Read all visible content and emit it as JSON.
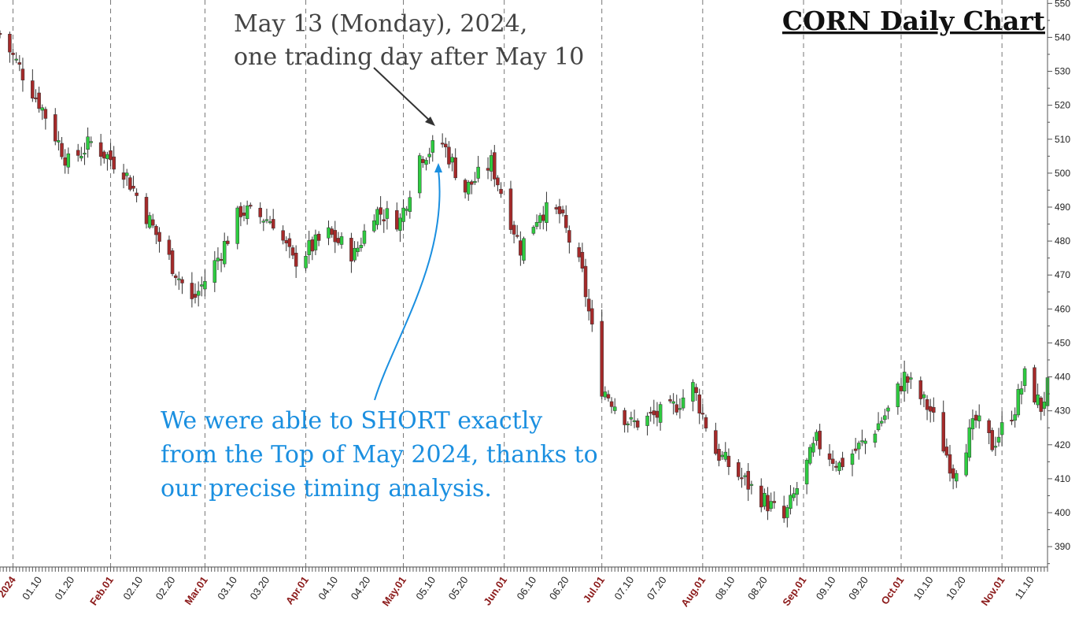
{
  "chart_data": {
    "type": "candlestick",
    "title": "CORN Daily Chart",
    "ylim": [
      384,
      551
    ],
    "yticks": [
      390,
      400,
      410,
      420,
      430,
      440,
      450,
      460,
      470,
      480,
      490,
      500,
      510,
      520,
      530,
      540,
      550
    ],
    "x_start": "2023-12-29",
    "x_end": "2024-11-15",
    "grid": {
      "vertical_dashed_at_month_starts": true,
      "horizontal": false
    },
    "x_tick_labels": [
      {
        "label": "2024",
        "date": "2024-01-02",
        "month_start": true
      },
      {
        "label": "01.10",
        "date": "2024-01-10",
        "month_start": false
      },
      {
        "label": "01.20",
        "date": "2024-01-20",
        "month_start": false
      },
      {
        "label": "Feb.01",
        "date": "2024-02-01",
        "month_start": true
      },
      {
        "label": "02.10",
        "date": "2024-02-10",
        "month_start": false
      },
      {
        "label": "02.20",
        "date": "2024-02-20",
        "month_start": false
      },
      {
        "label": "Mar.01",
        "date": "2024-03-01",
        "month_start": true
      },
      {
        "label": "03.10",
        "date": "2024-03-10",
        "month_start": false
      },
      {
        "label": "03.20",
        "date": "2024-03-20",
        "month_start": false
      },
      {
        "label": "Apr.01",
        "date": "2024-04-01",
        "month_start": true
      },
      {
        "label": "04.10",
        "date": "2024-04-10",
        "month_start": false
      },
      {
        "label": "04.20",
        "date": "2024-04-20",
        "month_start": false
      },
      {
        "label": "May.01",
        "date": "2024-05-01",
        "month_start": true
      },
      {
        "label": "05.10",
        "date": "2024-05-10",
        "month_start": false
      },
      {
        "label": "05.20",
        "date": "2024-05-20",
        "month_start": false
      },
      {
        "label": "Jun.01",
        "date": "2024-06-01",
        "month_start": true
      },
      {
        "label": "06.10",
        "date": "2024-06-10",
        "month_start": false
      },
      {
        "label": "06.20",
        "date": "2024-06-20",
        "month_start": false
      },
      {
        "label": "Jul.01",
        "date": "2024-07-01",
        "month_start": true
      },
      {
        "label": "07.10",
        "date": "2024-07-10",
        "month_start": false
      },
      {
        "label": "07.20",
        "date": "2024-07-20",
        "month_start": false
      },
      {
        "label": "Aug.01",
        "date": "2024-08-01",
        "month_start": true
      },
      {
        "label": "08.10",
        "date": "2024-08-10",
        "month_start": false
      },
      {
        "label": "08.20",
        "date": "2024-08-20",
        "month_start": false
      },
      {
        "label": "Sep.01",
        "date": "2024-09-01",
        "month_start": true
      },
      {
        "label": "09.10",
        "date": "2024-09-10",
        "month_start": false
      },
      {
        "label": "09.20",
        "date": "2024-09-20",
        "month_start": false
      },
      {
        "label": "Oct.01",
        "date": "2024-10-01",
        "month_start": true
      },
      {
        "label": "10.10",
        "date": "2024-10-10",
        "month_start": false
      },
      {
        "label": "10.20",
        "date": "2024-10-20",
        "month_start": false
      },
      {
        "label": "Nov.01",
        "date": "2024-11-01",
        "month_start": true
      },
      {
        "label": "11.10",
        "date": "2024-11-10",
        "month_start": false
      }
    ],
    "price_path": [
      [
        "2023-12-29",
        541
      ],
      [
        "2024-01-10",
        521
      ],
      [
        "2024-01-19",
        503
      ],
      [
        "2024-01-26",
        509
      ],
      [
        "2024-02-05",
        501
      ],
      [
        "2024-02-15",
        482
      ],
      [
        "2024-02-26",
        462
      ],
      [
        "2024-03-05",
        475
      ],
      [
        "2024-03-12",
        489
      ],
      [
        "2024-03-22",
        486
      ],
      [
        "2024-03-28",
        474
      ],
      [
        "2024-04-08",
        482
      ],
      [
        "2024-04-16",
        476
      ],
      [
        "2024-04-22",
        489
      ],
      [
        "2024-04-30",
        486
      ],
      [
        "2024-05-06",
        505
      ],
      [
        "2024-05-13",
        509
      ],
      [
        "2024-05-20",
        495
      ],
      [
        "2024-05-28",
        503
      ],
      [
        "2024-06-06",
        478
      ],
      [
        "2024-06-12",
        489
      ],
      [
        "2024-06-18",
        488
      ],
      [
        "2024-06-25",
        470
      ],
      [
        "2024-07-01",
        437
      ],
      [
        "2024-07-10",
        426
      ],
      [
        "2024-07-22",
        430
      ],
      [
        "2024-07-29",
        437
      ],
      [
        "2024-08-05",
        418
      ],
      [
        "2024-08-12",
        411
      ],
      [
        "2024-08-26",
        398
      ],
      [
        "2024-09-05",
        421
      ],
      [
        "2024-09-12",
        414
      ],
      [
        "2024-09-20",
        421
      ],
      [
        "2024-09-27",
        430
      ],
      [
        "2024-10-02",
        440
      ],
      [
        "2024-10-10",
        430
      ],
      [
        "2024-10-17",
        412
      ],
      [
        "2024-10-24",
        427
      ],
      [
        "2024-10-29",
        420
      ],
      [
        "2024-11-05",
        431
      ],
      [
        "2024-11-08",
        440
      ],
      [
        "2024-11-13",
        431
      ],
      [
        "2024-11-15",
        437
      ]
    ]
  },
  "annotations": {
    "top_note_line1": "May 13 (Monday), 2024,",
    "top_note_line2": "one trading day after May 10",
    "bottom_note_line1": "We were able to SHORT exactly",
    "bottom_note_line2": "from the Top of May 2024, thanks to",
    "bottom_note_line3": "our precise timing analysis."
  },
  "colors": {
    "up_candle": "#2ecc40",
    "down_candle": "#a52a2a",
    "wick": "#333333",
    "top_note": "#444444",
    "bottom_note": "#1a8fe0",
    "month_label": "#8b1a1a",
    "grid": "#777777"
  }
}
